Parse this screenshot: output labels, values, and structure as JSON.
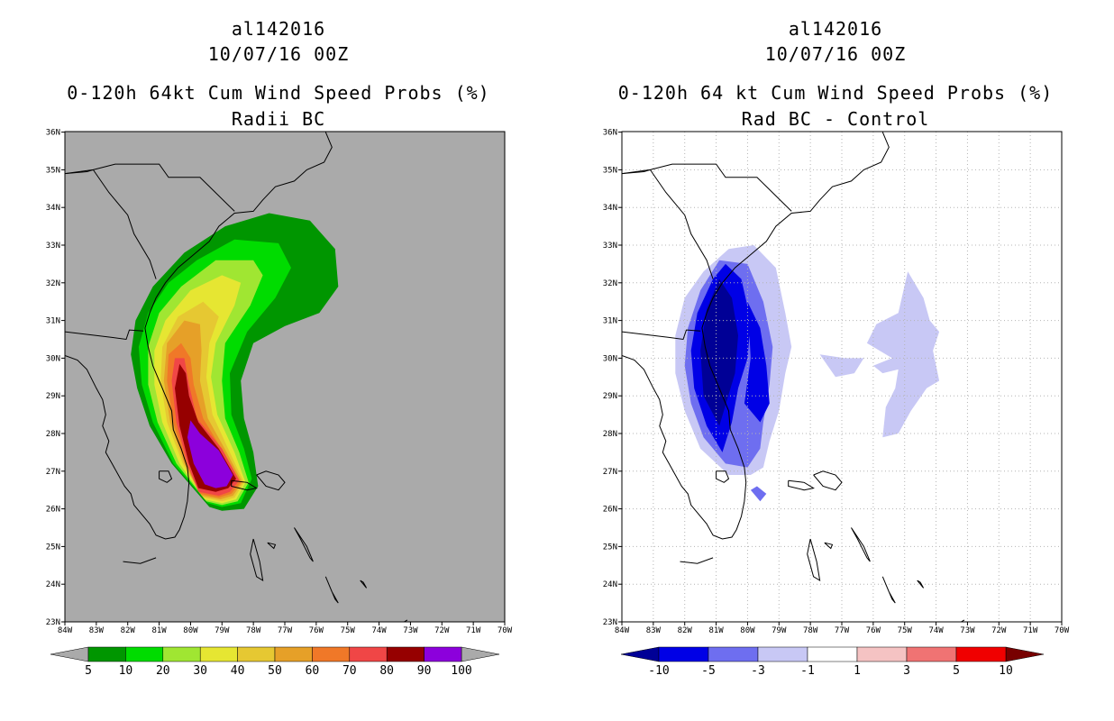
{
  "left": {
    "title_storm": "al142016",
    "title_time": "10/07/16 00Z",
    "title_product": "0-120h 64kt Cum Wind Speed Probs (%)",
    "title_sub": "Radii BC",
    "background_color": "#aaaaaa",
    "colorbar": {
      "labels": [
        "5",
        "10",
        "20",
        "30",
        "40",
        "50",
        "60",
        "70",
        "80",
        "90",
        "100"
      ],
      "colors": [
        "#009600",
        "#00dc00",
        "#a0e632",
        "#e6e632",
        "#e6c832",
        "#e6a028",
        "#f07828",
        "#f04646",
        "#960000",
        "#8c00dc"
      ],
      "under_color": "#aaaaaa",
      "over_color": "#aaaaaa"
    }
  },
  "right": {
    "title_storm": "al142016",
    "title_time": "10/07/16 00Z",
    "title_product": "0-120h 64 kt Cum Wind Speed Probs (%)",
    "title_sub": "Rad BC - Control",
    "background_color": "#ffffff",
    "colorbar": {
      "labels": [
        "-10",
        "-5",
        "-3",
        "-1",
        "1",
        "3",
        "5",
        "10"
      ],
      "colors": [
        "#0000e6",
        "#6e6ef0",
        "#c8c8f5",
        "#ffffff",
        "#f5c3c3",
        "#f07373",
        "#f00000"
      ],
      "under_color": "#000096",
      "over_color": "#780000"
    }
  },
  "axes": {
    "lon_labels": [
      "84W",
      "83W",
      "82W",
      "81W",
      "80W",
      "79W",
      "78W",
      "77W",
      "76W",
      "75W",
      "74W",
      "73W",
      "72W",
      "71W",
      "70W"
    ],
    "lat_labels": [
      "23N",
      "24N",
      "25N",
      "26N",
      "27N",
      "28N",
      "29N",
      "30N",
      "31N",
      "32N",
      "33N",
      "34N",
      "35N",
      "36N"
    ]
  },
  "colors": {
    "coast": "#000000",
    "grid": "#b4b4b4"
  }
}
